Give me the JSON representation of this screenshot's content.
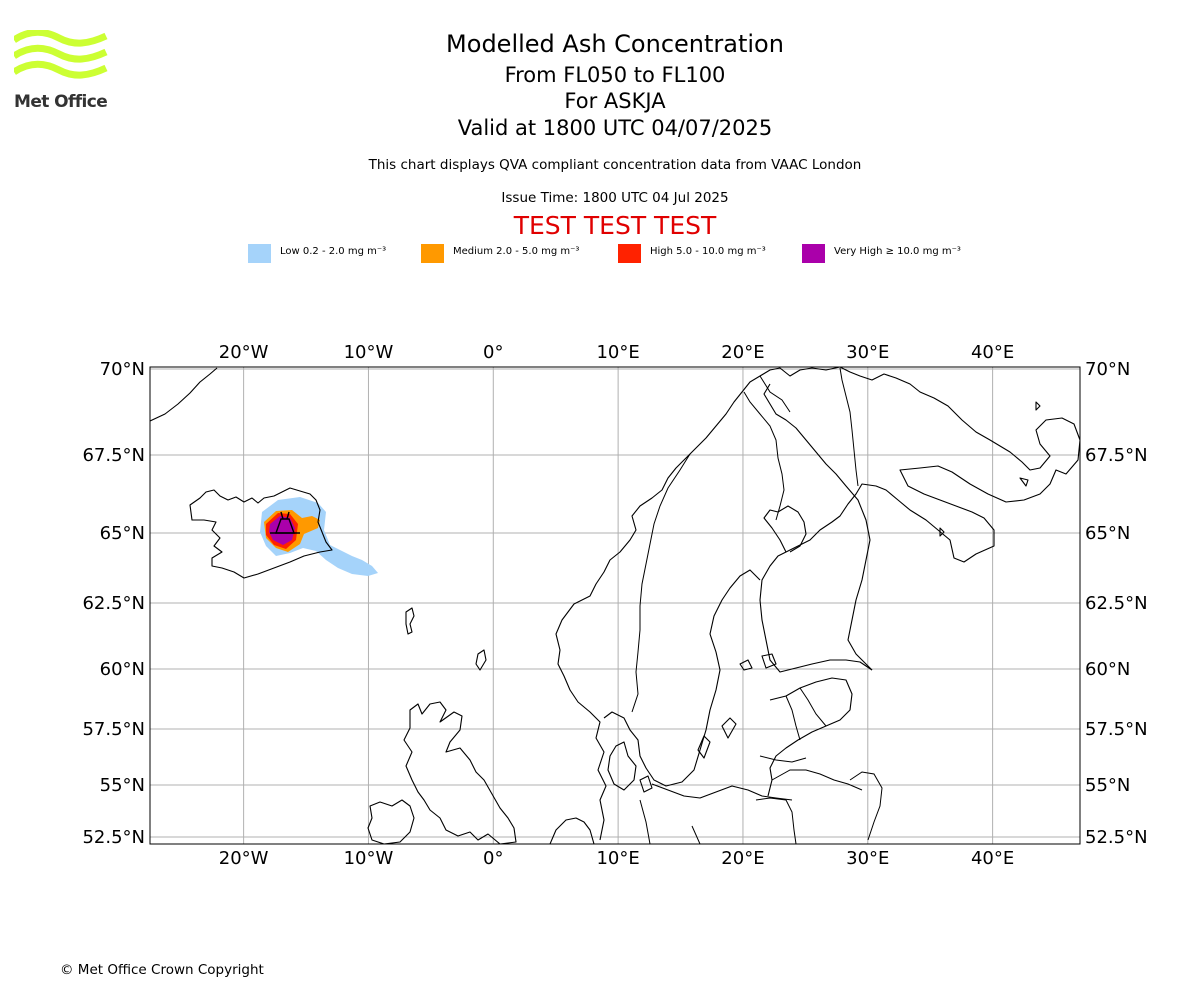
{
  "brand": {
    "name": "Met Office",
    "logo_color": "#ccff33"
  },
  "header": {
    "title": "Modelled Ash Concentration",
    "levels": "From FL050 to FL100",
    "volcano": "For ASKJA",
    "valid": "Valid at 1800 UTC 04/07/2025",
    "description": "This chart displays QVA compliant concentration data from VAAC London",
    "issue_time": "Issue Time: 1800 UTC 04 Jul 2025",
    "test_banner": "TEST TEST TEST",
    "test_banner_color": "#e00000"
  },
  "legend": [
    {
      "label": "Low 0.2 - 2.0 mg m⁻³",
      "color": "#a5d3fa"
    },
    {
      "label": "Medium 2.0 - 5.0 mg m⁻³",
      "color": "#ff9900"
    },
    {
      "label": "High 5.0 - 10.0 mg m⁻³",
      "color": "#ff2200"
    },
    {
      "label": "Very High ≥ 10.0 mg m⁻³",
      "color": "#aa00aa"
    }
  ],
  "map": {
    "projection": "equirectangular-like",
    "lon_range": [
      -27.5,
      47
    ],
    "lat_range": [
      52.2,
      70.1
    ],
    "gridlines": true,
    "lon_ticks": [
      {
        "value": -20,
        "label": "20°W"
      },
      {
        "value": -10,
        "label": "10°W"
      },
      {
        "value": 0,
        "label": "0°"
      },
      {
        "value": 10,
        "label": "10°E"
      },
      {
        "value": 20,
        "label": "20°E"
      },
      {
        "value": 30,
        "label": "30°E"
      },
      {
        "value": 40,
        "label": "40°E"
      }
    ],
    "lat_ticks": [
      {
        "value": 70,
        "label": "70°N"
      },
      {
        "value": 67.5,
        "label": "67.5°N"
      },
      {
        "value": 65,
        "label": "65°N"
      },
      {
        "value": 62.5,
        "label": "62.5°N"
      },
      {
        "value": 60,
        "label": "60°N"
      },
      {
        "value": 57.5,
        "label": "57.5°N"
      },
      {
        "value": 55,
        "label": "55°N"
      },
      {
        "value": 52.5,
        "label": "52.5°N"
      }
    ],
    "volcano_location": {
      "name": "ASKJA",
      "lon": -16.75,
      "lat": 65.05
    }
  },
  "footer": {
    "copyright": "© Met Office Crown Copyright"
  }
}
